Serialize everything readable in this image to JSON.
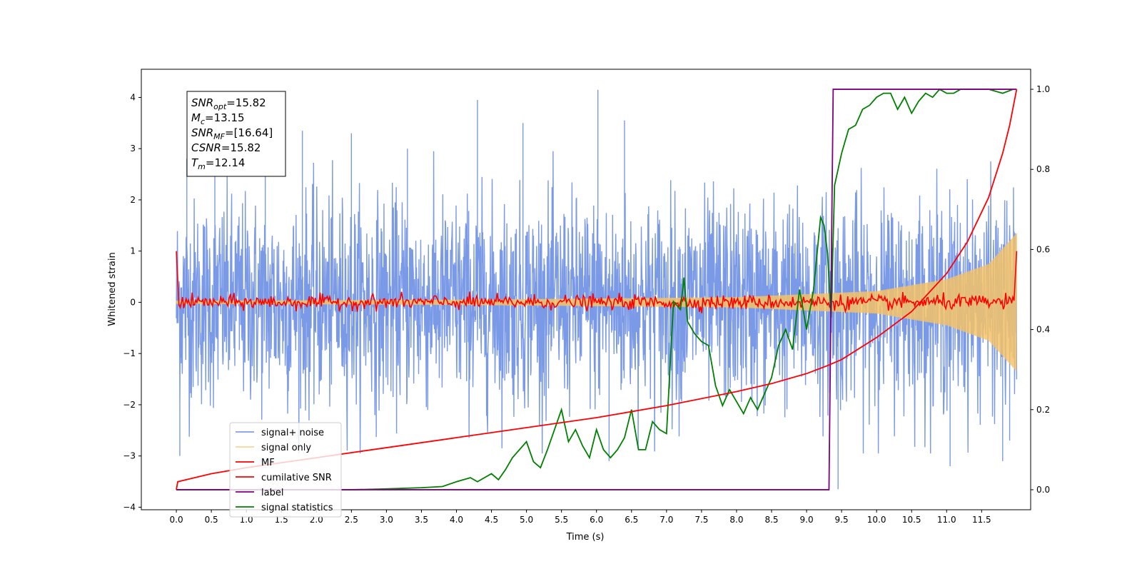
{
  "chart_data": {
    "type": "line",
    "xlabel": "Time (s)",
    "ylabel": "Whitened strain",
    "xlim": [
      -0.5,
      12.2
    ],
    "ylim": [
      -4.05,
      4.55
    ],
    "ylim_right": [
      -0.05,
      1.05
    ],
    "x_ticks": [
      "0.0",
      "0.5",
      "1.0",
      "1.5",
      "2.0",
      "2.5",
      "3.0",
      "3.5",
      "4.0",
      "4.5",
      "5.0",
      "5.5",
      "6.0",
      "6.5",
      "7.0",
      "7.5",
      "8.0",
      "8.5",
      "9.0",
      "9.5",
      "10.0",
      "10.5",
      "11.0",
      "11.5"
    ],
    "y_ticks_left": [
      "−4",
      "−3",
      "−2",
      "−1",
      "0",
      "1",
      "2",
      "3",
      "4"
    ],
    "y_ticks_right": [
      "0.0",
      "0.2",
      "0.4",
      "0.6",
      "0.8",
      "1.0"
    ],
    "annotation": {
      "lines": [
        {
          "sym": "SNR",
          "sub": "opt",
          "value": "=15.82"
        },
        {
          "sym": "M",
          "sub": "c",
          "value": "=13.15"
        },
        {
          "sym": "SNR",
          "sub": "MF",
          "value": "=[16.64]"
        },
        {
          "sym": "CSNR",
          "sub": "",
          "value": "=15.82"
        },
        {
          "sym": "T",
          "sub": "m",
          "value": "=12.14"
        }
      ]
    },
    "legend": {
      "placement": "lower-left",
      "entries": [
        {
          "label": "signal+ noise",
          "color": "#7393e6"
        },
        {
          "label": "signal only",
          "color": "#f5c266"
        },
        {
          "label": "MF",
          "color": "#ff0000"
        },
        {
          "label": "cumilative SNR",
          "color": "#ff0000"
        },
        {
          "label": "label",
          "color": "#800080"
        },
        {
          "label": "signal statistics",
          "color": "#008000"
        }
      ]
    },
    "series": [
      {
        "name": "signal+ noise",
        "axis": "left",
        "kind": "noise",
        "color": "#7393e6",
        "x_range": [
          0.0,
          12.0
        ],
        "band_std": 1.0,
        "peak": 4.15,
        "peaks": [
          [
            0.05,
            -3.0
          ],
          [
            0.15,
            2.8
          ],
          [
            0.55,
            3.15
          ],
          [
            1.27,
            3.05
          ],
          [
            1.8,
            3.35
          ],
          [
            2.5,
            3.3
          ],
          [
            3.3,
            3.0
          ],
          [
            4.3,
            3.95
          ],
          [
            4.95,
            3.5
          ],
          [
            6.02,
            4.15
          ],
          [
            6.18,
            -3.1
          ],
          [
            6.4,
            3.55
          ],
          [
            9.45,
            -3.65
          ],
          [
            11.05,
            -3.2
          ],
          [
            11.8,
            -3.1
          ],
          [
            11.9,
            -2.7
          ]
        ]
      },
      {
        "name": "signal only",
        "axis": "left",
        "kind": "chirp",
        "color": "#f5c266",
        "x_range": [
          0.0,
          12.0
        ],
        "envelope": [
          [
            0.0,
            0.03
          ],
          [
            4.0,
            0.05
          ],
          [
            8.0,
            0.1
          ],
          [
            10.0,
            0.22
          ],
          [
            11.0,
            0.45
          ],
          [
            11.6,
            0.75
          ],
          [
            12.0,
            1.35
          ]
        ]
      },
      {
        "name": "MF",
        "axis": "left",
        "kind": "mf",
        "color": "#ff0000",
        "x_range": [
          0.0,
          12.0
        ],
        "start": 1.0,
        "end": 1.0,
        "noise_amp": 0.07
      },
      {
        "name": "cumilative SNR",
        "axis": "right",
        "x": [
          0.0,
          0.02,
          0.5,
          1.0,
          2.0,
          3.0,
          4.0,
          5.0,
          6.0,
          7.0,
          8.0,
          8.5,
          9.0,
          9.3,
          9.5,
          10.0,
          10.5,
          11.0,
          11.3,
          11.6,
          11.8,
          11.9,
          12.0
        ],
        "values": [
          0.0,
          0.02,
          0.04,
          0.055,
          0.08,
          0.105,
          0.13,
          0.155,
          0.18,
          0.21,
          0.245,
          0.265,
          0.29,
          0.31,
          0.325,
          0.38,
          0.445,
          0.54,
          0.62,
          0.73,
          0.84,
          0.91,
          1.0
        ],
        "color": "#ff0000"
      },
      {
        "name": "label",
        "axis": "right",
        "x": [
          0.0,
          9.32,
          9.38,
          12.0
        ],
        "values": [
          0.0,
          0.0,
          1.0,
          1.0
        ],
        "color": "#800080"
      },
      {
        "name": "signal statistics",
        "axis": "right",
        "x": [
          0.0,
          0.5,
          1.0,
          1.5,
          2.0,
          2.5,
          3.0,
          3.5,
          3.8,
          4.0,
          4.2,
          4.3,
          4.5,
          4.6,
          4.7,
          4.8,
          5.0,
          5.1,
          5.2,
          5.3,
          5.5,
          5.6,
          5.7,
          5.8,
          5.9,
          6.0,
          6.1,
          6.2,
          6.3,
          6.4,
          6.5,
          6.6,
          6.7,
          6.8,
          6.9,
          7.0,
          7.1,
          7.2,
          7.25,
          7.3,
          7.4,
          7.5,
          7.6,
          7.7,
          7.8,
          7.9,
          8.0,
          8.1,
          8.2,
          8.3,
          8.4,
          8.5,
          8.6,
          8.7,
          8.8,
          8.9,
          9.0,
          9.1,
          9.2,
          9.25,
          9.3,
          9.35,
          9.4,
          9.5,
          9.6,
          9.7,
          9.8,
          9.9,
          10.0,
          10.1,
          10.2,
          10.3,
          10.4,
          10.5,
          10.6,
          10.7,
          10.8,
          10.9,
          11.0,
          11.1,
          11.2,
          11.4,
          11.6,
          11.8,
          11.95
        ],
        "values": [
          0.0,
          0.0,
          0.0,
          0.0,
          0.0,
          0.0,
          0.002,
          0.005,
          0.008,
          0.02,
          0.03,
          0.02,
          0.04,
          0.025,
          0.05,
          0.08,
          0.12,
          0.07,
          0.055,
          0.1,
          0.2,
          0.12,
          0.15,
          0.11,
          0.08,
          0.15,
          0.1,
          0.08,
          0.1,
          0.13,
          0.2,
          0.1,
          0.1,
          0.17,
          0.15,
          0.14,
          0.47,
          0.45,
          0.53,
          0.42,
          0.39,
          0.37,
          0.36,
          0.26,
          0.21,
          0.25,
          0.22,
          0.19,
          0.23,
          0.2,
          0.24,
          0.28,
          0.36,
          0.4,
          0.35,
          0.5,
          0.4,
          0.5,
          0.68,
          0.66,
          0.59,
          0.43,
          0.76,
          0.84,
          0.9,
          0.91,
          0.95,
          0.96,
          0.98,
          0.99,
          0.99,
          0.95,
          0.98,
          0.94,
          0.97,
          0.99,
          0.98,
          1.0,
          0.99,
          0.99,
          1.0,
          1.0,
          1.0,
          0.99,
          1.0
        ],
        "color": "#008000"
      }
    ]
  }
}
